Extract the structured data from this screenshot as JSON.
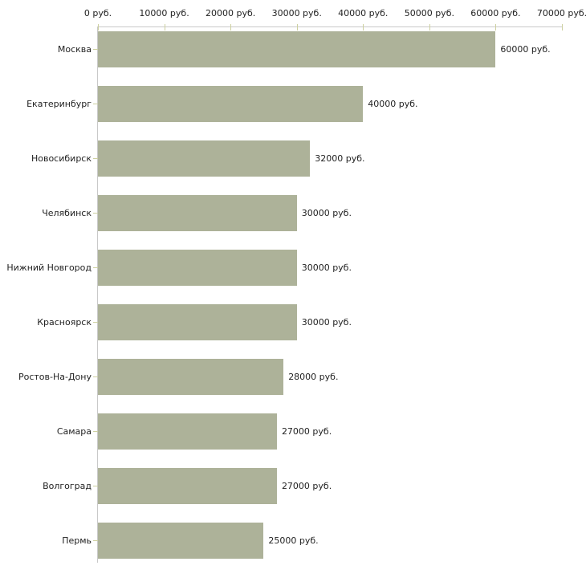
{
  "chart_data": {
    "type": "bar",
    "orientation": "horizontal",
    "title": "",
    "categories": [
      "Москва",
      "Екатеринбург",
      "Новосибирск",
      "Челябинск",
      "Нижний Новгород",
      "Красноярск",
      "Ростов-На-Дону",
      "Самара",
      "Волгоград",
      "Пермь"
    ],
    "values": [
      60000,
      40000,
      32000,
      30000,
      30000,
      30000,
      28000,
      27000,
      27000,
      25000
    ],
    "value_labels": [
      "60000 руб.",
      "40000 руб.",
      "32000 руб.",
      "30000 руб.",
      "30000 руб.",
      "30000 руб.",
      "28000 руб.",
      "27000 руб.",
      "27000 руб.",
      "25000 руб."
    ],
    "x_axis": {
      "position": "top",
      "min": 0,
      "max": 70000,
      "ticks": [
        0,
        10000,
        20000,
        30000,
        40000,
        50000,
        60000,
        70000
      ],
      "tick_labels": [
        "0 руб.",
        "10000 руб.",
        "20000 руб.",
        "30000 руб.",
        "40000 руб.",
        "50000 руб.",
        "60000 руб.",
        "70000 руб."
      ]
    },
    "ylabel": "",
    "xlabel": "",
    "grid": false,
    "legend": false,
    "colors": {
      "background": "#ffffff",
      "bar": "#adb299",
      "axis_line": "#c9c9c9",
      "tick_mark": "#cdd0a0",
      "text": "#222222"
    }
  }
}
